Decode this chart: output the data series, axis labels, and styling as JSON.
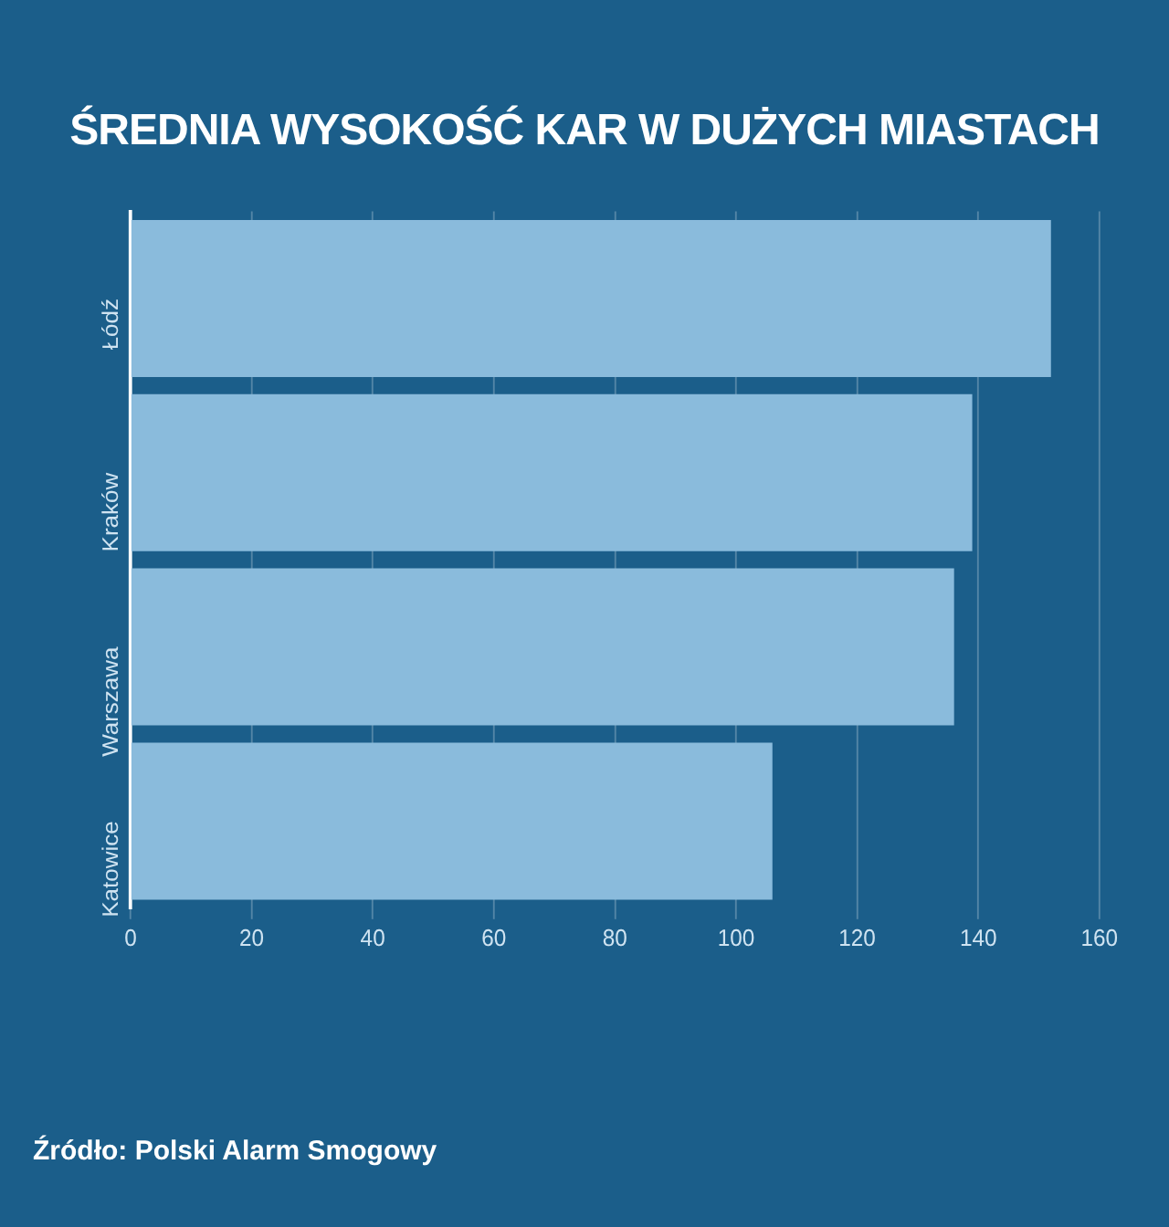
{
  "chart_data": {
    "type": "bar",
    "orientation": "horizontal",
    "title": "ŚREDNIA WYSOKOŚĆ KAR W DUŻYCH MIASTACH",
    "categories": [
      "Łódź",
      "Kraków",
      "Warszawa",
      "Katowice"
    ],
    "values": [
      152,
      139,
      136,
      106
    ],
    "color": "#8abbdc",
    "xlim": [
      0,
      160
    ],
    "xticks": [
      0,
      20,
      40,
      60,
      80,
      100,
      120,
      140,
      160
    ],
    "grid": "x",
    "legend": false,
    "annotations": [
      "Źródło: Polski Alarm Smogowy"
    ]
  }
}
